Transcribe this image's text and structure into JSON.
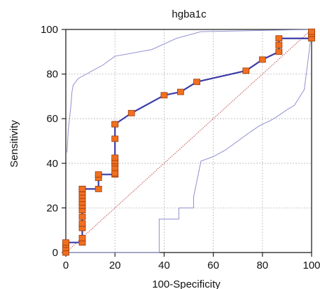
{
  "chart_data": {
    "type": "line",
    "title": "hgba1c",
    "xlabel": "100-Specificity",
    "ylabel": "Sensitivity",
    "xlim": [
      0,
      100
    ],
    "ylim": [
      0,
      100
    ],
    "xticks": [
      "0",
      "20",
      "40",
      "60",
      "80",
      "100"
    ],
    "yticks": [
      "0",
      "20",
      "40",
      "60",
      "80",
      "100"
    ],
    "grid": true,
    "reference_line": {
      "from": [
        0,
        0
      ],
      "to": [
        100,
        100
      ],
      "color": "#c0504d"
    },
    "colors": {
      "roc": "#3c3ca8",
      "marker": "#f07020",
      "marker_edge": "#9a3a08",
      "ci": "#8f8fcf",
      "grid": "#b8b8b8"
    },
    "series": [
      {
        "role": "roc",
        "x": [
          0,
          0,
          0,
          0,
          6.7,
          6.7,
          6.7,
          6.7,
          6.7,
          6.7,
          6.7,
          6.7,
          6.7,
          6.7,
          6.7,
          6.7,
          6.7,
          6.7,
          6.7,
          13.3,
          13.3,
          13.3,
          20,
          20,
          20,
          20,
          20,
          20,
          20,
          20,
          20,
          26.7,
          40,
          46.7,
          53.3,
          73.3,
          80,
          86.7,
          86.7,
          86.7,
          100,
          100,
          100
        ],
        "y": [
          0,
          2,
          3.5,
          4.5,
          4.5,
          6.5,
          11,
          13,
          16,
          19,
          21,
          22.5,
          24,
          25.5,
          27,
          28.5,
          28.5,
          28.5,
          28.5,
          28.5,
          33.5,
          35,
          35,
          35.5,
          38,
          40,
          41,
          42.5,
          51,
          57.5,
          57.5,
          62.5,
          70.5,
          72,
          76.5,
          81.5,
          86.5,
          90,
          93,
          96,
          96,
          98,
          99
        ]
      },
      {
        "role": "ci-upper",
        "x": [
          0,
          0.5,
          1,
          2,
          2.5,
          3,
          5,
          10,
          15,
          20,
          35,
          45,
          55,
          100
        ],
        "y": [
          45,
          45,
          55,
          65,
          72,
          75,
          78,
          81,
          84,
          88,
          91,
          96,
          99,
          100
        ]
      },
      {
        "role": "ci-lower",
        "x": [
          0,
          25,
          38,
          38,
          46,
          46,
          52,
          52,
          55,
          60,
          65,
          70,
          75,
          79,
          83,
          86,
          90,
          93,
          97,
          99,
          100
        ],
        "y": [
          0,
          0,
          0,
          15,
          15,
          20,
          20,
          25,
          41,
          43,
          46,
          50,
          54,
          57,
          59,
          61,
          64,
          66,
          73,
          90,
          100
        ]
      }
    ]
  }
}
